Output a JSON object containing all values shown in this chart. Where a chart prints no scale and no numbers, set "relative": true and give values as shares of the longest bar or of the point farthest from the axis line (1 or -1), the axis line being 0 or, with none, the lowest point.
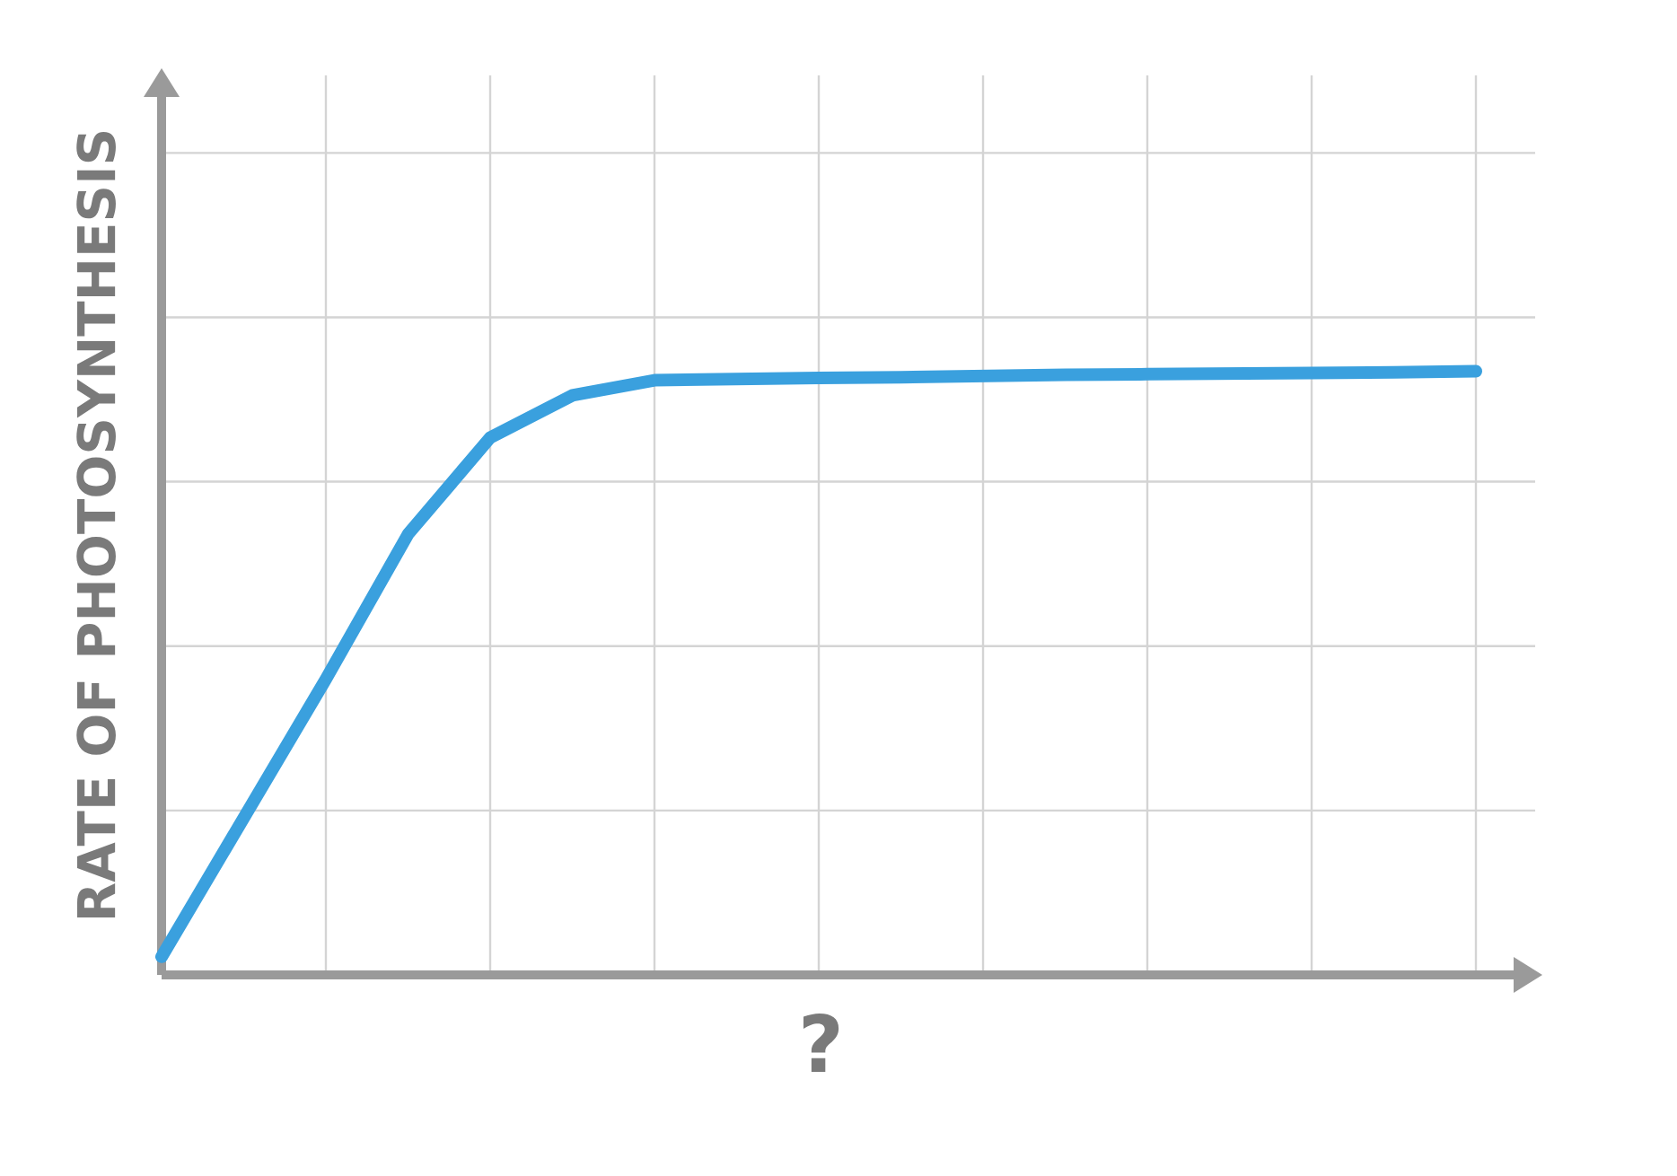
{
  "chart_data": {
    "type": "line",
    "relative": true,
    "grid": true,
    "xlabel": "?",
    "ylabel": "RATE OF PHOTOSYNTHESIS",
    "categories": [
      null,
      null,
      null,
      null,
      null,
      null,
      null,
      null,
      null,
      null,
      null,
      null,
      null,
      null,
      null,
      null,
      null
    ],
    "color": "#3aa0de",
    "values": [
      0.03,
      0.26,
      0.49,
      0.73,
      0.89,
      0.96,
      0.985,
      0.987,
      0.989,
      0.99,
      0.992,
      0.994,
      0.995,
      0.996,
      0.997,
      0.998,
      1.0
    ]
  }
}
